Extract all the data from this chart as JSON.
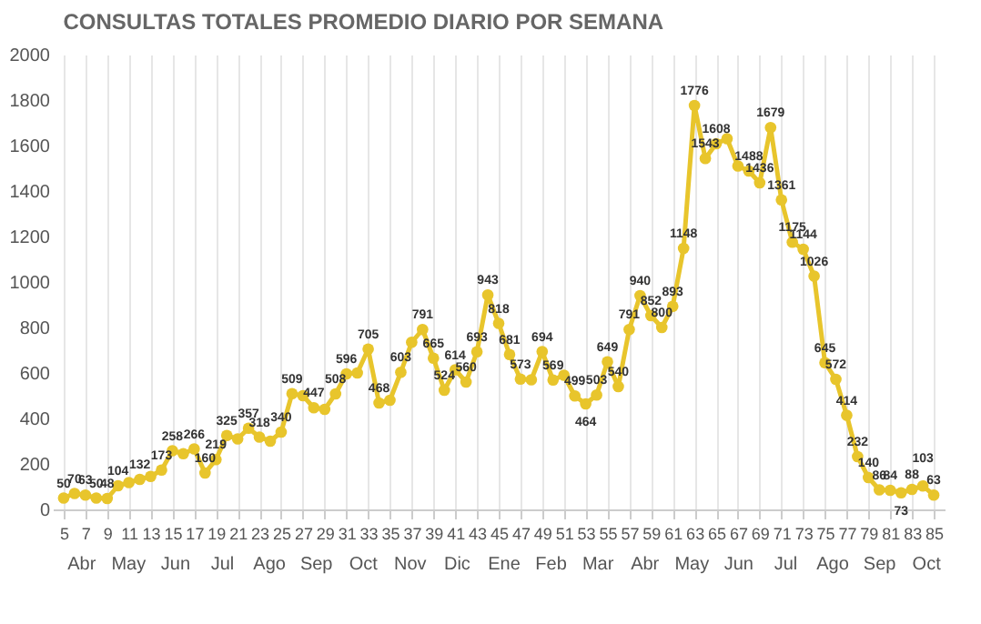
{
  "chart_data": {
    "type": "line",
    "title": "CONSULTAS TOTALES PROMEDIO DIARIO POR SEMANA",
    "x": [
      5,
      6,
      7,
      8,
      9,
      10,
      11,
      12,
      13,
      14,
      15,
      16,
      17,
      18,
      19,
      20,
      21,
      22,
      23,
      24,
      25,
      26,
      27,
      28,
      29,
      30,
      31,
      32,
      33,
      34,
      35,
      36,
      37,
      38,
      39,
      40,
      41,
      42,
      43,
      44,
      45,
      46,
      47,
      48,
      49,
      50,
      51,
      52,
      53,
      54,
      55,
      56,
      57,
      58,
      59,
      60,
      61,
      62,
      63,
      64,
      65,
      66,
      67,
      68,
      69,
      70,
      71,
      72,
      73,
      74,
      75,
      76,
      77,
      78,
      79,
      80,
      81,
      82,
      83,
      84,
      85
    ],
    "series": [
      {
        "color": "#e8c52c",
        "values": [
          50,
          70,
          63,
          50,
          48,
          104,
          118,
          132,
          145,
          173,
          258,
          245,
          266,
          160,
          219,
          325,
          310,
          357,
          318,
          300,
          340,
          509,
          500,
          447,
          440,
          508,
          596,
          600,
          705,
          468,
          480,
          603,
          735,
          791,
          665,
          524,
          614,
          560,
          693,
          943,
          818,
          681,
          573,
          570,
          694,
          569,
          590,
          499,
          464,
          503,
          649,
          540,
          791,
          940,
          852,
          800,
          893,
          1148,
          1776,
          1543,
          1608,
          1630,
          1510,
          1488,
          1436,
          1679,
          1361,
          1175,
          1144,
          1026,
          645,
          572,
          414,
          232,
          140,
          86,
          84,
          73,
          88,
          103,
          63
        ],
        "value_labels": [
          "50",
          "70",
          "63",
          "50",
          "48",
          "104",
          null,
          "132",
          null,
          "173",
          "258",
          null,
          "266",
          "160",
          "219",
          "325",
          null,
          "357",
          "318",
          null,
          "340",
          "509",
          null,
          "447",
          null,
          "508",
          "596",
          null,
          "705",
          "468",
          null,
          "603",
          null,
          "791",
          "665",
          "524",
          "614",
          "560",
          "693",
          "943",
          "818",
          "681",
          "573",
          null,
          "694",
          "569",
          null,
          "499",
          "464",
          "503",
          "649",
          "540",
          "791",
          "940",
          "852",
          "800",
          "893",
          "1148",
          "1776",
          "1543",
          "1608",
          null,
          null,
          "1488",
          "1436",
          "1679",
          "1361",
          "1175",
          "1144",
          "1026",
          "645",
          "572",
          "414",
          "232",
          "140",
          "86",
          "84",
          "73",
          "88",
          "103",
          "63"
        ]
      }
    ],
    "xlim": [
      4,
      86
    ],
    "xticks": [
      5,
      7,
      9,
      11,
      13,
      15,
      17,
      19,
      21,
      23,
      25,
      27,
      29,
      31,
      33,
      35,
      37,
      39,
      41,
      43,
      45,
      47,
      49,
      51,
      53,
      55,
      57,
      59,
      61,
      63,
      65,
      67,
      69,
      71,
      73,
      75,
      77,
      79,
      81,
      83,
      85
    ],
    "ylim": [
      0,
      2000
    ],
    "yticks": [
      0,
      200,
      400,
      600,
      800,
      1000,
      1200,
      1400,
      1600,
      1800,
      2000
    ],
    "grid": "x",
    "marker": "circle",
    "annotations": [
      "Abr",
      "May",
      "Jun",
      "Jul",
      "Ago",
      "Sep",
      "Oct",
      "Nov",
      "Dic",
      "Ene",
      "Feb",
      "Mar",
      "Abr",
      "May",
      "Jun",
      "Jul",
      "Ago",
      "Sep",
      "Oct"
    ]
  }
}
